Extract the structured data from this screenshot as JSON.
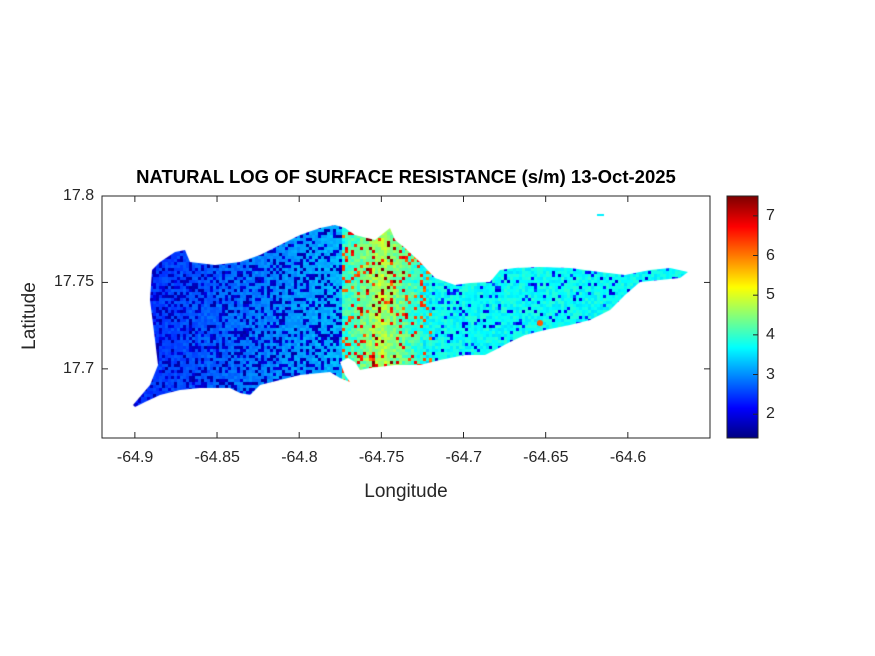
{
  "chart_data": {
    "type": "heatmap",
    "title": "NATURAL LOG OF SURFACE RESISTANCE (s/m) 13-Oct-2025",
    "xlabel": "Longitude",
    "ylabel": "Latitude",
    "xlim": [
      -64.92,
      -64.55
    ],
    "ylim": [
      17.66,
      17.8
    ],
    "xticks": [
      -64.9,
      -64.85,
      -64.8,
      -64.75,
      -64.7,
      -64.65,
      -64.6
    ],
    "xtick_labels": [
      "-64.9",
      "-64.85",
      "-64.8",
      "-64.75",
      "-64.7",
      "-64.65",
      "-64.6"
    ],
    "yticks": [
      17.7,
      17.75,
      17.8
    ],
    "ytick_labels": [
      "17.7",
      "17.75",
      "17.8"
    ],
    "colormap": "jet",
    "clim": [
      1.4,
      7.5
    ],
    "colorbar_ticks": [
      2,
      3,
      4,
      5,
      6,
      7
    ],
    "colorbar_tick_labels": [
      "2",
      "3",
      "4",
      "5",
      "6",
      "7"
    ],
    "colorbar_placement": "right",
    "grid": false,
    "regions": [
      {
        "area": "west (lon < -64.78)",
        "typical_value": 2.8,
        "min_value": 1.6
      },
      {
        "area": "central (-64.78 to -64.73)",
        "typical_value": 4.5,
        "max_value": 7.3
      },
      {
        "area": "east (lon > -64.73)",
        "typical_value": 3.7,
        "min_value": 1.8
      }
    ]
  }
}
